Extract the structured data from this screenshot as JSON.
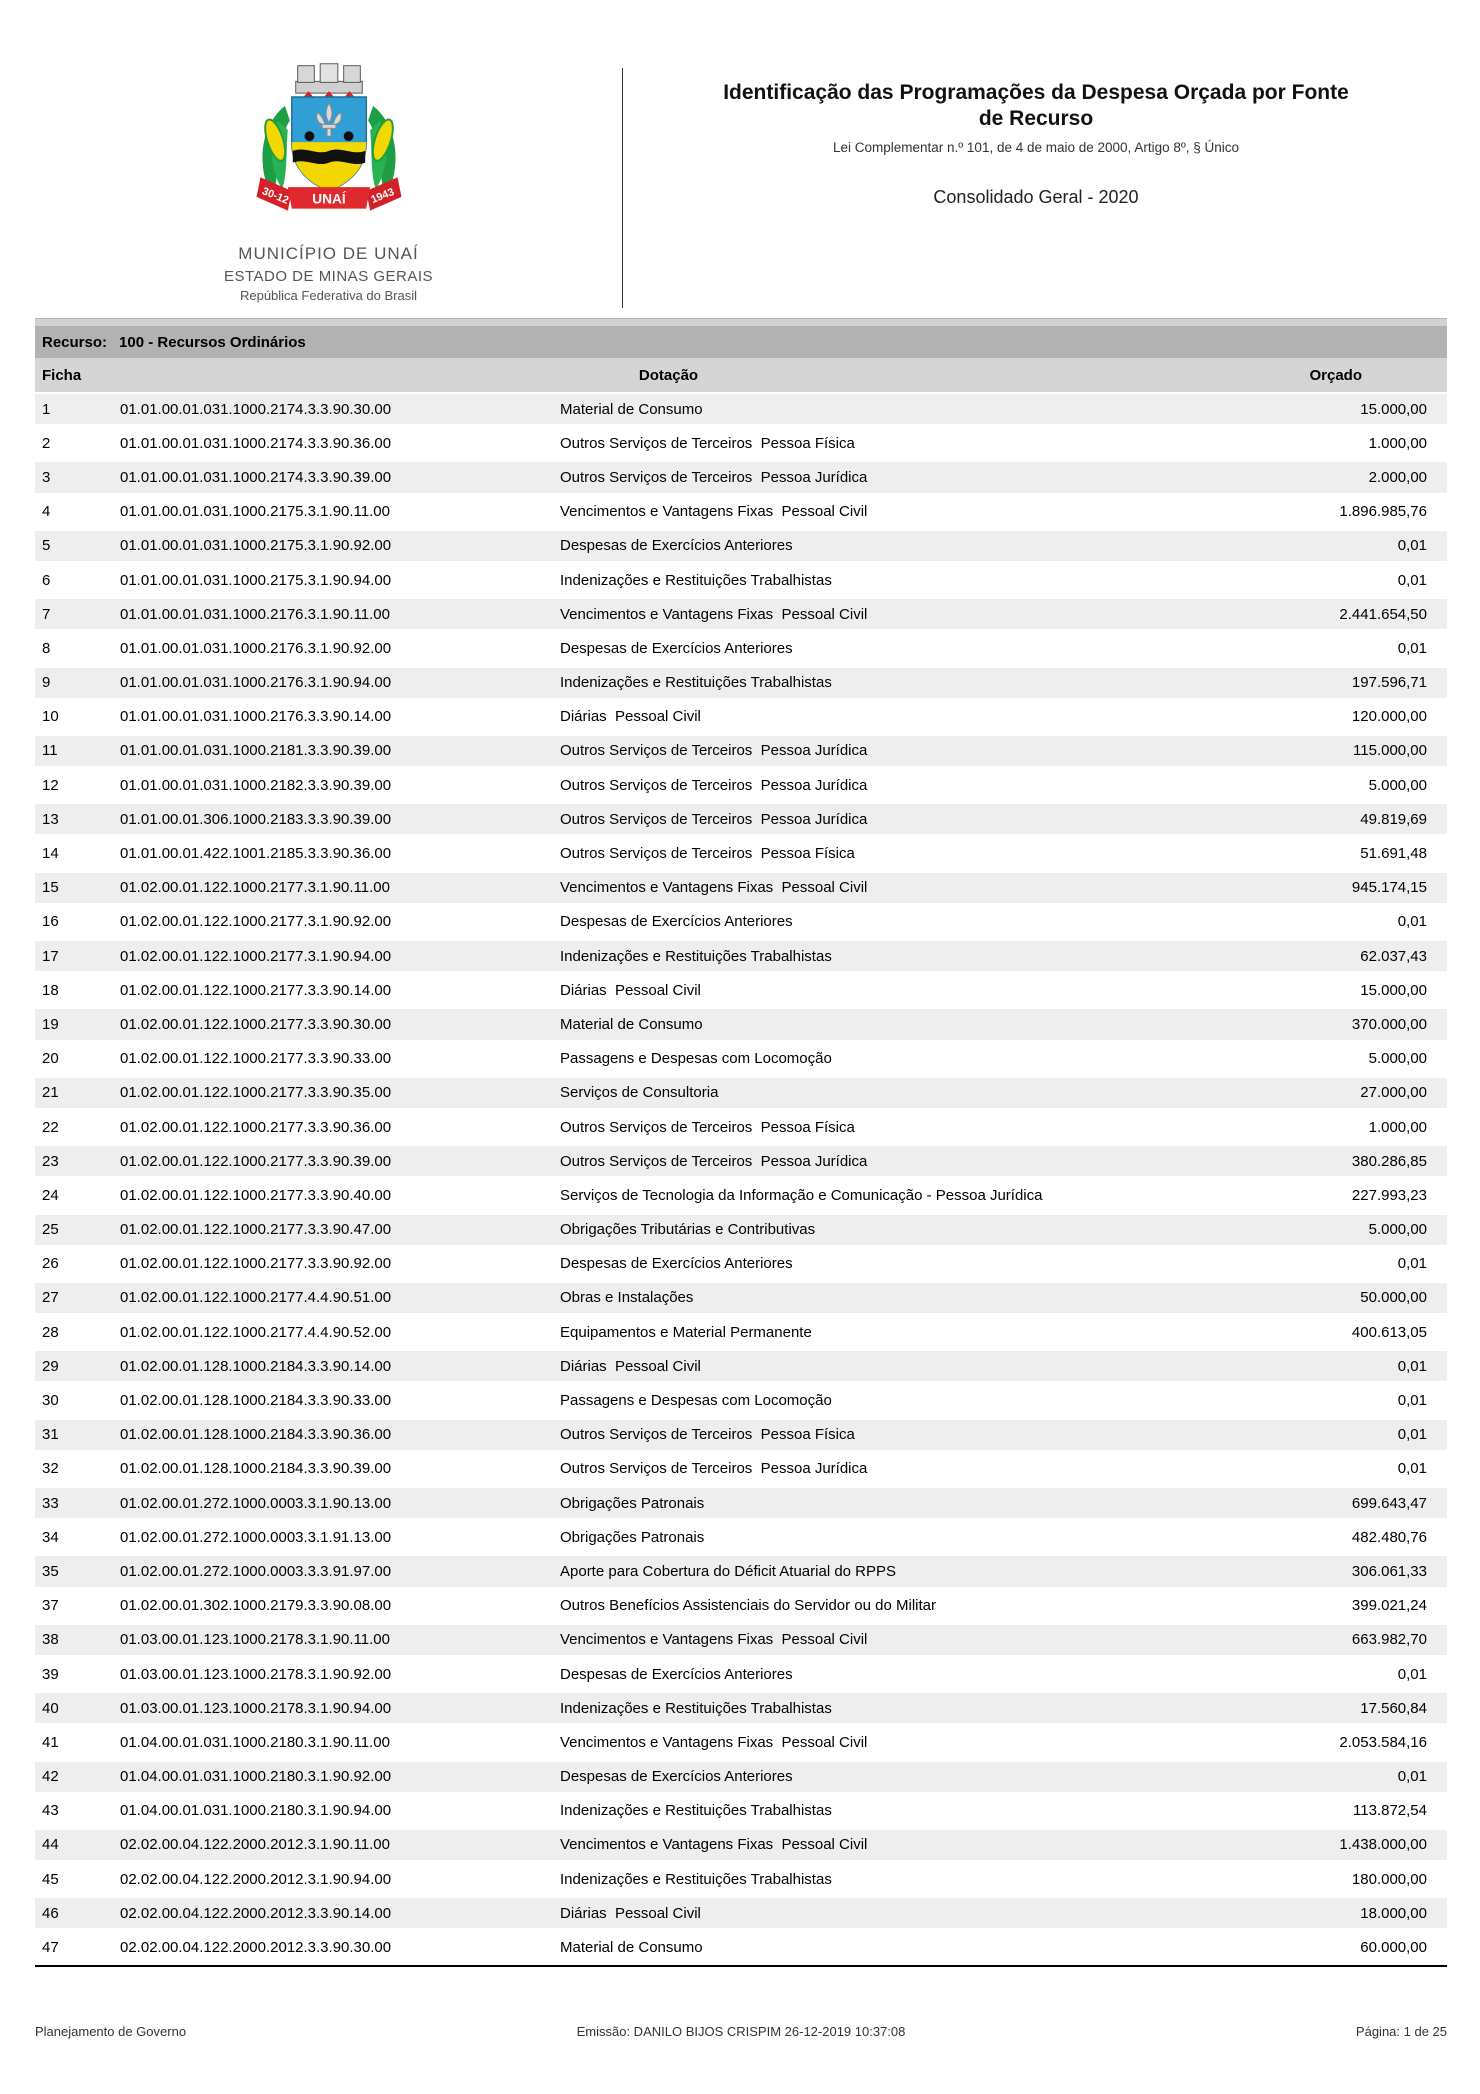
{
  "header": {
    "municipality": "MUNICÍPIO DE UNAÍ",
    "state": "ESTADO DE MINAS GERAIS",
    "country": "República Federativa do Brasil",
    "title": "Identificação das Programações da Despesa Orçada por Fonte\nde Recurso",
    "subtitle": "Lei Complementar n.º 101, de 4 de maio de 2000, Artigo 8º, § Único",
    "scope": "Consolidado Geral - 2020",
    "crest": {
      "ribbon_left": "30-12",
      "ribbon_center": "UNAÍ",
      "ribbon_right": "1943"
    }
  },
  "colors": {
    "band_recurso": "#b2b2b2",
    "band_headers": "#d5d5d5",
    "row_shaded": "#eeeeee",
    "crest_blue": "#2f9fd6",
    "crest_yellow": "#f2d800",
    "crest_green": "#1e9e44",
    "crest_red": "#d42027"
  },
  "table": {
    "resource_label": "Recurso:",
    "resource_value": "100 - Recursos Ordinários",
    "col_ficha": "Ficha",
    "col_dotacao": "Dotação",
    "col_orcado": "Orçado",
    "rows": [
      {
        "ficha": "1",
        "code": "01.01.00.01.031.1000.2174.3.3.90.30.00",
        "description": "Material de Consumo",
        "value": "15.000,00"
      },
      {
        "ficha": "2",
        "code": "01.01.00.01.031.1000.2174.3.3.90.36.00",
        "description": "Outros Serviços de Terceiros  Pessoa Física",
        "value": "1.000,00"
      },
      {
        "ficha": "3",
        "code": "01.01.00.01.031.1000.2174.3.3.90.39.00",
        "description": "Outros Serviços de Terceiros  Pessoa Jurídica",
        "value": "2.000,00"
      },
      {
        "ficha": "4",
        "code": "01.01.00.01.031.1000.2175.3.1.90.11.00",
        "description": "Vencimentos e Vantagens Fixas  Pessoal Civil",
        "value": "1.896.985,76"
      },
      {
        "ficha": "5",
        "code": "01.01.00.01.031.1000.2175.3.1.90.92.00",
        "description": "Despesas de Exercícios Anteriores",
        "value": "0,01"
      },
      {
        "ficha": "6",
        "code": "01.01.00.01.031.1000.2175.3.1.90.94.00",
        "description": "Indenizações e Restituições Trabalhistas",
        "value": "0,01"
      },
      {
        "ficha": "7",
        "code": "01.01.00.01.031.1000.2176.3.1.90.11.00",
        "description": "Vencimentos e Vantagens Fixas  Pessoal Civil",
        "value": "2.441.654,50"
      },
      {
        "ficha": "8",
        "code": "01.01.00.01.031.1000.2176.3.1.90.92.00",
        "description": "Despesas de Exercícios Anteriores",
        "value": "0,01"
      },
      {
        "ficha": "9",
        "code": "01.01.00.01.031.1000.2176.3.1.90.94.00",
        "description": "Indenizações e Restituições Trabalhistas",
        "value": "197.596,71"
      },
      {
        "ficha": "10",
        "code": "01.01.00.01.031.1000.2176.3.3.90.14.00",
        "description": "Diárias  Pessoal Civil",
        "value": "120.000,00"
      },
      {
        "ficha": "11",
        "code": "01.01.00.01.031.1000.2181.3.3.90.39.00",
        "description": "Outros Serviços de Terceiros  Pessoa Jurídica",
        "value": "115.000,00"
      },
      {
        "ficha": "12",
        "code": "01.01.00.01.031.1000.2182.3.3.90.39.00",
        "description": "Outros Serviços de Terceiros  Pessoa Jurídica",
        "value": "5.000,00"
      },
      {
        "ficha": "13",
        "code": "01.01.00.01.306.1000.2183.3.3.90.39.00",
        "description": "Outros Serviços de Terceiros  Pessoa Jurídica",
        "value": "49.819,69"
      },
      {
        "ficha": "14",
        "code": "01.01.00.01.422.1001.2185.3.3.90.36.00",
        "description": "Outros Serviços de Terceiros  Pessoa Física",
        "value": "51.691,48"
      },
      {
        "ficha": "15",
        "code": "01.02.00.01.122.1000.2177.3.1.90.11.00",
        "description": "Vencimentos e Vantagens Fixas  Pessoal Civil",
        "value": "945.174,15"
      },
      {
        "ficha": "16",
        "code": "01.02.00.01.122.1000.2177.3.1.90.92.00",
        "description": "Despesas de Exercícios Anteriores",
        "value": "0,01"
      },
      {
        "ficha": "17",
        "code": "01.02.00.01.122.1000.2177.3.1.90.94.00",
        "description": "Indenizações e Restituições Trabalhistas",
        "value": "62.037,43"
      },
      {
        "ficha": "18",
        "code": "01.02.00.01.122.1000.2177.3.3.90.14.00",
        "description": "Diárias  Pessoal Civil",
        "value": "15.000,00"
      },
      {
        "ficha": "19",
        "code": "01.02.00.01.122.1000.2177.3.3.90.30.00",
        "description": "Material de Consumo",
        "value": "370.000,00"
      },
      {
        "ficha": "20",
        "code": "01.02.00.01.122.1000.2177.3.3.90.33.00",
        "description": "Passagens e Despesas com Locomoção",
        "value": "5.000,00"
      },
      {
        "ficha": "21",
        "code": "01.02.00.01.122.1000.2177.3.3.90.35.00",
        "description": "Serviços de Consultoria",
        "value": "27.000,00"
      },
      {
        "ficha": "22",
        "code": "01.02.00.01.122.1000.2177.3.3.90.36.00",
        "description": "Outros Serviços de Terceiros  Pessoa Física",
        "value": "1.000,00"
      },
      {
        "ficha": "23",
        "code": "01.02.00.01.122.1000.2177.3.3.90.39.00",
        "description": "Outros Serviços de Terceiros  Pessoa Jurídica",
        "value": "380.286,85"
      },
      {
        "ficha": "24",
        "code": "01.02.00.01.122.1000.2177.3.3.90.40.00",
        "description": "Serviços de Tecnologia da Informação e Comunicação - Pessoa Jurídica",
        "value": "227.993,23"
      },
      {
        "ficha": "25",
        "code": "01.02.00.01.122.1000.2177.3.3.90.47.00",
        "description": "Obrigações Tributárias e Contributivas",
        "value": "5.000,00"
      },
      {
        "ficha": "26",
        "code": "01.02.00.01.122.1000.2177.3.3.90.92.00",
        "description": "Despesas de Exercícios Anteriores",
        "value": "0,01"
      },
      {
        "ficha": "27",
        "code": "01.02.00.01.122.1000.2177.4.4.90.51.00",
        "description": "Obras e Instalações",
        "value": "50.000,00"
      },
      {
        "ficha": "28",
        "code": "01.02.00.01.122.1000.2177.4.4.90.52.00",
        "description": "Equipamentos e Material Permanente",
        "value": "400.613,05"
      },
      {
        "ficha": "29",
        "code": "01.02.00.01.128.1000.2184.3.3.90.14.00",
        "description": "Diárias  Pessoal Civil",
        "value": "0,01"
      },
      {
        "ficha": "30",
        "code": "01.02.00.01.128.1000.2184.3.3.90.33.00",
        "description": "Passagens e Despesas com Locomoção",
        "value": "0,01"
      },
      {
        "ficha": "31",
        "code": "01.02.00.01.128.1000.2184.3.3.90.36.00",
        "description": "Outros Serviços de Terceiros  Pessoa Física",
        "value": "0,01"
      },
      {
        "ficha": "32",
        "code": "01.02.00.01.128.1000.2184.3.3.90.39.00",
        "description": "Outros Serviços de Terceiros  Pessoa Jurídica",
        "value": "0,01"
      },
      {
        "ficha": "33",
        "code": "01.02.00.01.272.1000.0003.3.1.90.13.00",
        "description": "Obrigações Patronais",
        "value": "699.643,47"
      },
      {
        "ficha": "34",
        "code": "01.02.00.01.272.1000.0003.3.1.91.13.00",
        "description": "Obrigações Patronais",
        "value": "482.480,76"
      },
      {
        "ficha": "35",
        "code": "01.02.00.01.272.1000.0003.3.3.91.97.00",
        "description": "Aporte para Cobertura do Déficit Atuarial do RPPS",
        "value": "306.061,33"
      },
      {
        "ficha": "37",
        "code": "01.02.00.01.302.1000.2179.3.3.90.08.00",
        "description": "Outros Benefícios Assistenciais do Servidor ou do Militar",
        "value": "399.021,24"
      },
      {
        "ficha": "38",
        "code": "01.03.00.01.123.1000.2178.3.1.90.11.00",
        "description": "Vencimentos e Vantagens Fixas  Pessoal Civil",
        "value": "663.982,70"
      },
      {
        "ficha": "39",
        "code": "01.03.00.01.123.1000.2178.3.1.90.92.00",
        "description": "Despesas de Exercícios Anteriores",
        "value": "0,01"
      },
      {
        "ficha": "40",
        "code": "01.03.00.01.123.1000.2178.3.1.90.94.00",
        "description": "Indenizações e Restituições Trabalhistas",
        "value": "17.560,84"
      },
      {
        "ficha": "41",
        "code": "01.04.00.01.031.1000.2180.3.1.90.11.00",
        "description": "Vencimentos e Vantagens Fixas  Pessoal Civil",
        "value": "2.053.584,16"
      },
      {
        "ficha": "42",
        "code": "01.04.00.01.031.1000.2180.3.1.90.92.00",
        "description": "Despesas de Exercícios Anteriores",
        "value": "0,01"
      },
      {
        "ficha": "43",
        "code": "01.04.00.01.031.1000.2180.3.1.90.94.00",
        "description": "Indenizações e Restituições Trabalhistas",
        "value": "113.872,54"
      },
      {
        "ficha": "44",
        "code": "02.02.00.04.122.2000.2012.3.1.90.11.00",
        "description": "Vencimentos e Vantagens Fixas  Pessoal Civil",
        "value": "1.438.000,00"
      },
      {
        "ficha": "45",
        "code": "02.02.00.04.122.2000.2012.3.1.90.94.00",
        "description": "Indenizações e Restituições Trabalhistas",
        "value": "180.000,00"
      },
      {
        "ficha": "46",
        "code": "02.02.00.04.122.2000.2012.3.3.90.14.00",
        "description": "Diárias  Pessoal Civil",
        "value": "18.000,00"
      },
      {
        "ficha": "47",
        "code": "02.02.00.04.122.2000.2012.3.3.90.30.00",
        "description": "Material de Consumo",
        "value": "60.000,00"
      }
    ]
  },
  "footer": {
    "left": "Planejamento de Governo",
    "center": "Emissão: DANILO BIJOS CRISPIM 26-12-2019 10:37:08",
    "right": "Página: 1 de 25"
  }
}
